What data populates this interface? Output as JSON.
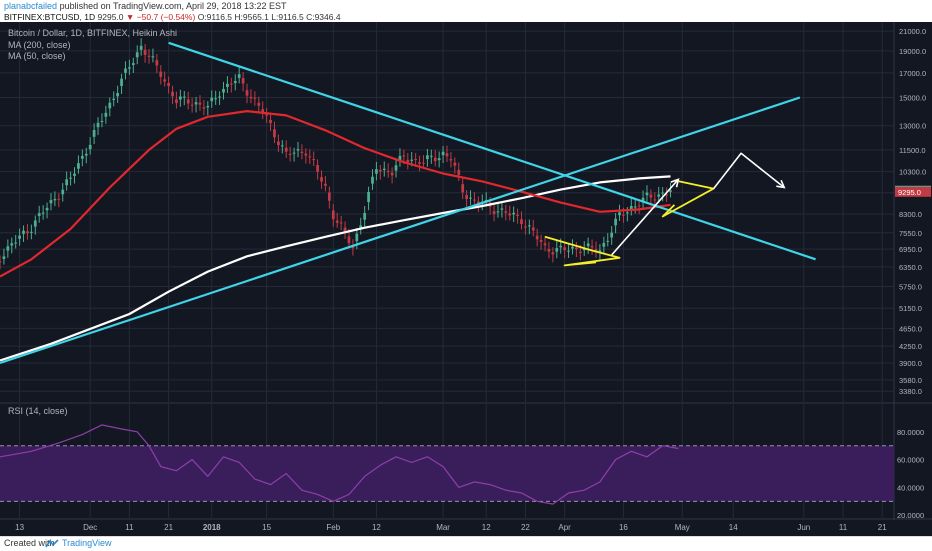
{
  "header": {
    "user": "planabcfailed",
    "published": "published on TradingView.com, April 29, 2018 13:22 EST",
    "symbol": "BITFINEX:BTCUSD, 1D",
    "last": "9295.0",
    "change": "−50.7 (−0.54%)",
    "ohlc": "O:9116.5 H:9565.1 L:9116.5 C:9346.4"
  },
  "footer": {
    "created": "Created with",
    "brand": "TradingView"
  },
  "colors": {
    "background": "#131722",
    "up_candle": "#4caf90",
    "down_candle": "#c23a45",
    "ma200": "#ffffff",
    "ma50": "#e0282e",
    "trendline": "#3fd4e8",
    "flag": "#f5ef27",
    "rsi_line": "#8e3ea8",
    "rsi_band": "#3a1e5c"
  },
  "chart_data": [
    {
      "type": "candlestick",
      "title": "Bitcoin / Dollar, 1D, BITFINEX, Heikin Ashi",
      "legend": [
        "MA (200, close)",
        "MA (50, close)"
      ],
      "x_tick_labels": [
        "13",
        "Dec",
        "11",
        "21",
        "2018",
        "15",
        "Feb",
        "12",
        "Mar",
        "12",
        "22",
        "Apr",
        "16",
        "May",
        "14",
        "Jun",
        "11",
        "21"
      ],
      "x_tick_days": [
        -48,
        -30,
        -20,
        -10,
        1,
        15,
        32,
        43,
        60,
        71,
        81,
        91,
        106,
        121,
        134,
        152,
        162,
        172
      ],
      "x_range_days": [
        -53,
        175
      ],
      "y_scale": "log",
      "y_ticks": [
        21000,
        19000,
        17000,
        15000,
        13000,
        11500,
        10300,
        9250,
        8300,
        7550,
        6950,
        6350,
        5750,
        5150,
        4650,
        4250,
        3900,
        3580,
        3380
      ],
      "y_range": [
        3200,
        22000
      ],
      "price_labels": [
        {
          "value": 9346.4,
          "text": "9346.4",
          "color": "#4caf90"
        },
        {
          "value": 9295.0,
          "text": "9295.0",
          "color": "#c23a45"
        }
      ],
      "series": [
        {
          "name": "MA (200, close)",
          "x": [
            -53,
            -40,
            -20,
            -10,
            0,
            10,
            20,
            30,
            40,
            50,
            60,
            70,
            80,
            90,
            100,
            110,
            118
          ],
          "y": [
            3950,
            4300,
            5000,
            5600,
            6200,
            6700,
            7050,
            7400,
            7750,
            8050,
            8350,
            8650,
            9000,
            9400,
            9750,
            9950,
            10050
          ]
        },
        {
          "name": "MA (50, close)",
          "x": [
            -53,
            -45,
            -35,
            -25,
            -15,
            -8,
            0,
            10,
            20,
            30,
            40,
            50,
            60,
            70,
            80,
            90,
            100,
            110,
            118
          ],
          "y": [
            6050,
            6600,
            7700,
            9500,
            11500,
            12800,
            13600,
            14000,
            13700,
            12700,
            11600,
            10800,
            10200,
            9800,
            9300,
            8800,
            8400,
            8500,
            8700
          ]
        }
      ],
      "candle_anchor_days": [
        -53,
        -45,
        -35,
        -25,
        -22,
        -17,
        -12,
        -8,
        -5,
        0,
        3,
        8,
        13,
        15,
        20,
        25,
        30,
        32,
        37,
        40,
        43,
        47,
        50,
        55,
        60,
        62,
        65,
        68,
        70,
        75,
        80,
        86,
        90,
        95,
        100,
        105,
        108,
        112,
        118
      ],
      "candle_anchor_closes": [
        6700,
        7800,
        9900,
        14500,
        16300,
        19500,
        17000,
        14700,
        14800,
        14200,
        15500,
        16500,
        14300,
        13500,
        11200,
        11500,
        9500,
        8300,
        7000,
        8500,
        10500,
        10300,
        11100,
        10800,
        11300,
        11000,
        9400,
        8800,
        8800,
        8400,
        8100,
        7000,
        6900,
        7000,
        6900,
        8200,
        8600,
        9000,
        9346
      ],
      "annotations": {
        "trendlines": [
          {
            "name": "descending",
            "x": [
              -10,
              155
            ],
            "y": [
              19800,
              6600
            ]
          },
          {
            "name": "ascending",
            "x": [
              -53,
              151
            ],
            "y": [
              3900,
              15000
            ]
          }
        ],
        "flags": [
          {
            "name": "flag-april",
            "x": [
              86,
              98,
              105,
              91,
              99
            ],
            "y": [
              7400,
              6900,
              6650,
              6400,
              6500
            ]
          },
          {
            "name": "flag-may",
            "x": [
              119,
              129,
              116,
              119
            ],
            "y": [
              9850,
              9450,
              8200,
              8700
            ]
          }
        ],
        "arrows": [
          {
            "name": "arrow-rally",
            "x": [
              103,
              120
            ],
            "y": [
              6750,
              9900
            ]
          },
          {
            "name": "arrow-projection",
            "x": [
              129,
              136,
              147
            ],
            "y": [
              9450,
              11300,
              9500
            ]
          }
        ]
      }
    },
    {
      "type": "line",
      "title": "RSI (14, close)",
      "y_ticks": [
        80,
        60,
        40,
        20
      ],
      "y_tick_labels": [
        "80.0000",
        "60.0000",
        "40.0000",
        "20.0000"
      ],
      "y_range": [
        18,
        100
      ],
      "band": [
        30,
        70
      ],
      "x": [
        -53,
        -45,
        -38,
        -32,
        -27,
        -22,
        -18,
        -15,
        -12,
        -8,
        -4,
        0,
        4,
        8,
        12,
        16,
        20,
        24,
        28,
        32,
        36,
        40,
        44,
        48,
        52,
        56,
        60,
        64,
        68,
        72,
        76,
        80,
        84,
        88,
        92,
        96,
        100,
        104,
        108,
        112,
        116,
        120
      ],
      "y": [
        62,
        66,
        72,
        78,
        85,
        82,
        80,
        70,
        55,
        52,
        60,
        48,
        62,
        58,
        46,
        42,
        50,
        38,
        35,
        30,
        35,
        48,
        56,
        62,
        58,
        62,
        55,
        40,
        44,
        42,
        38,
        36,
        30,
        28,
        36,
        38,
        44,
        60,
        66,
        62,
        70,
        68
      ]
    }
  ]
}
